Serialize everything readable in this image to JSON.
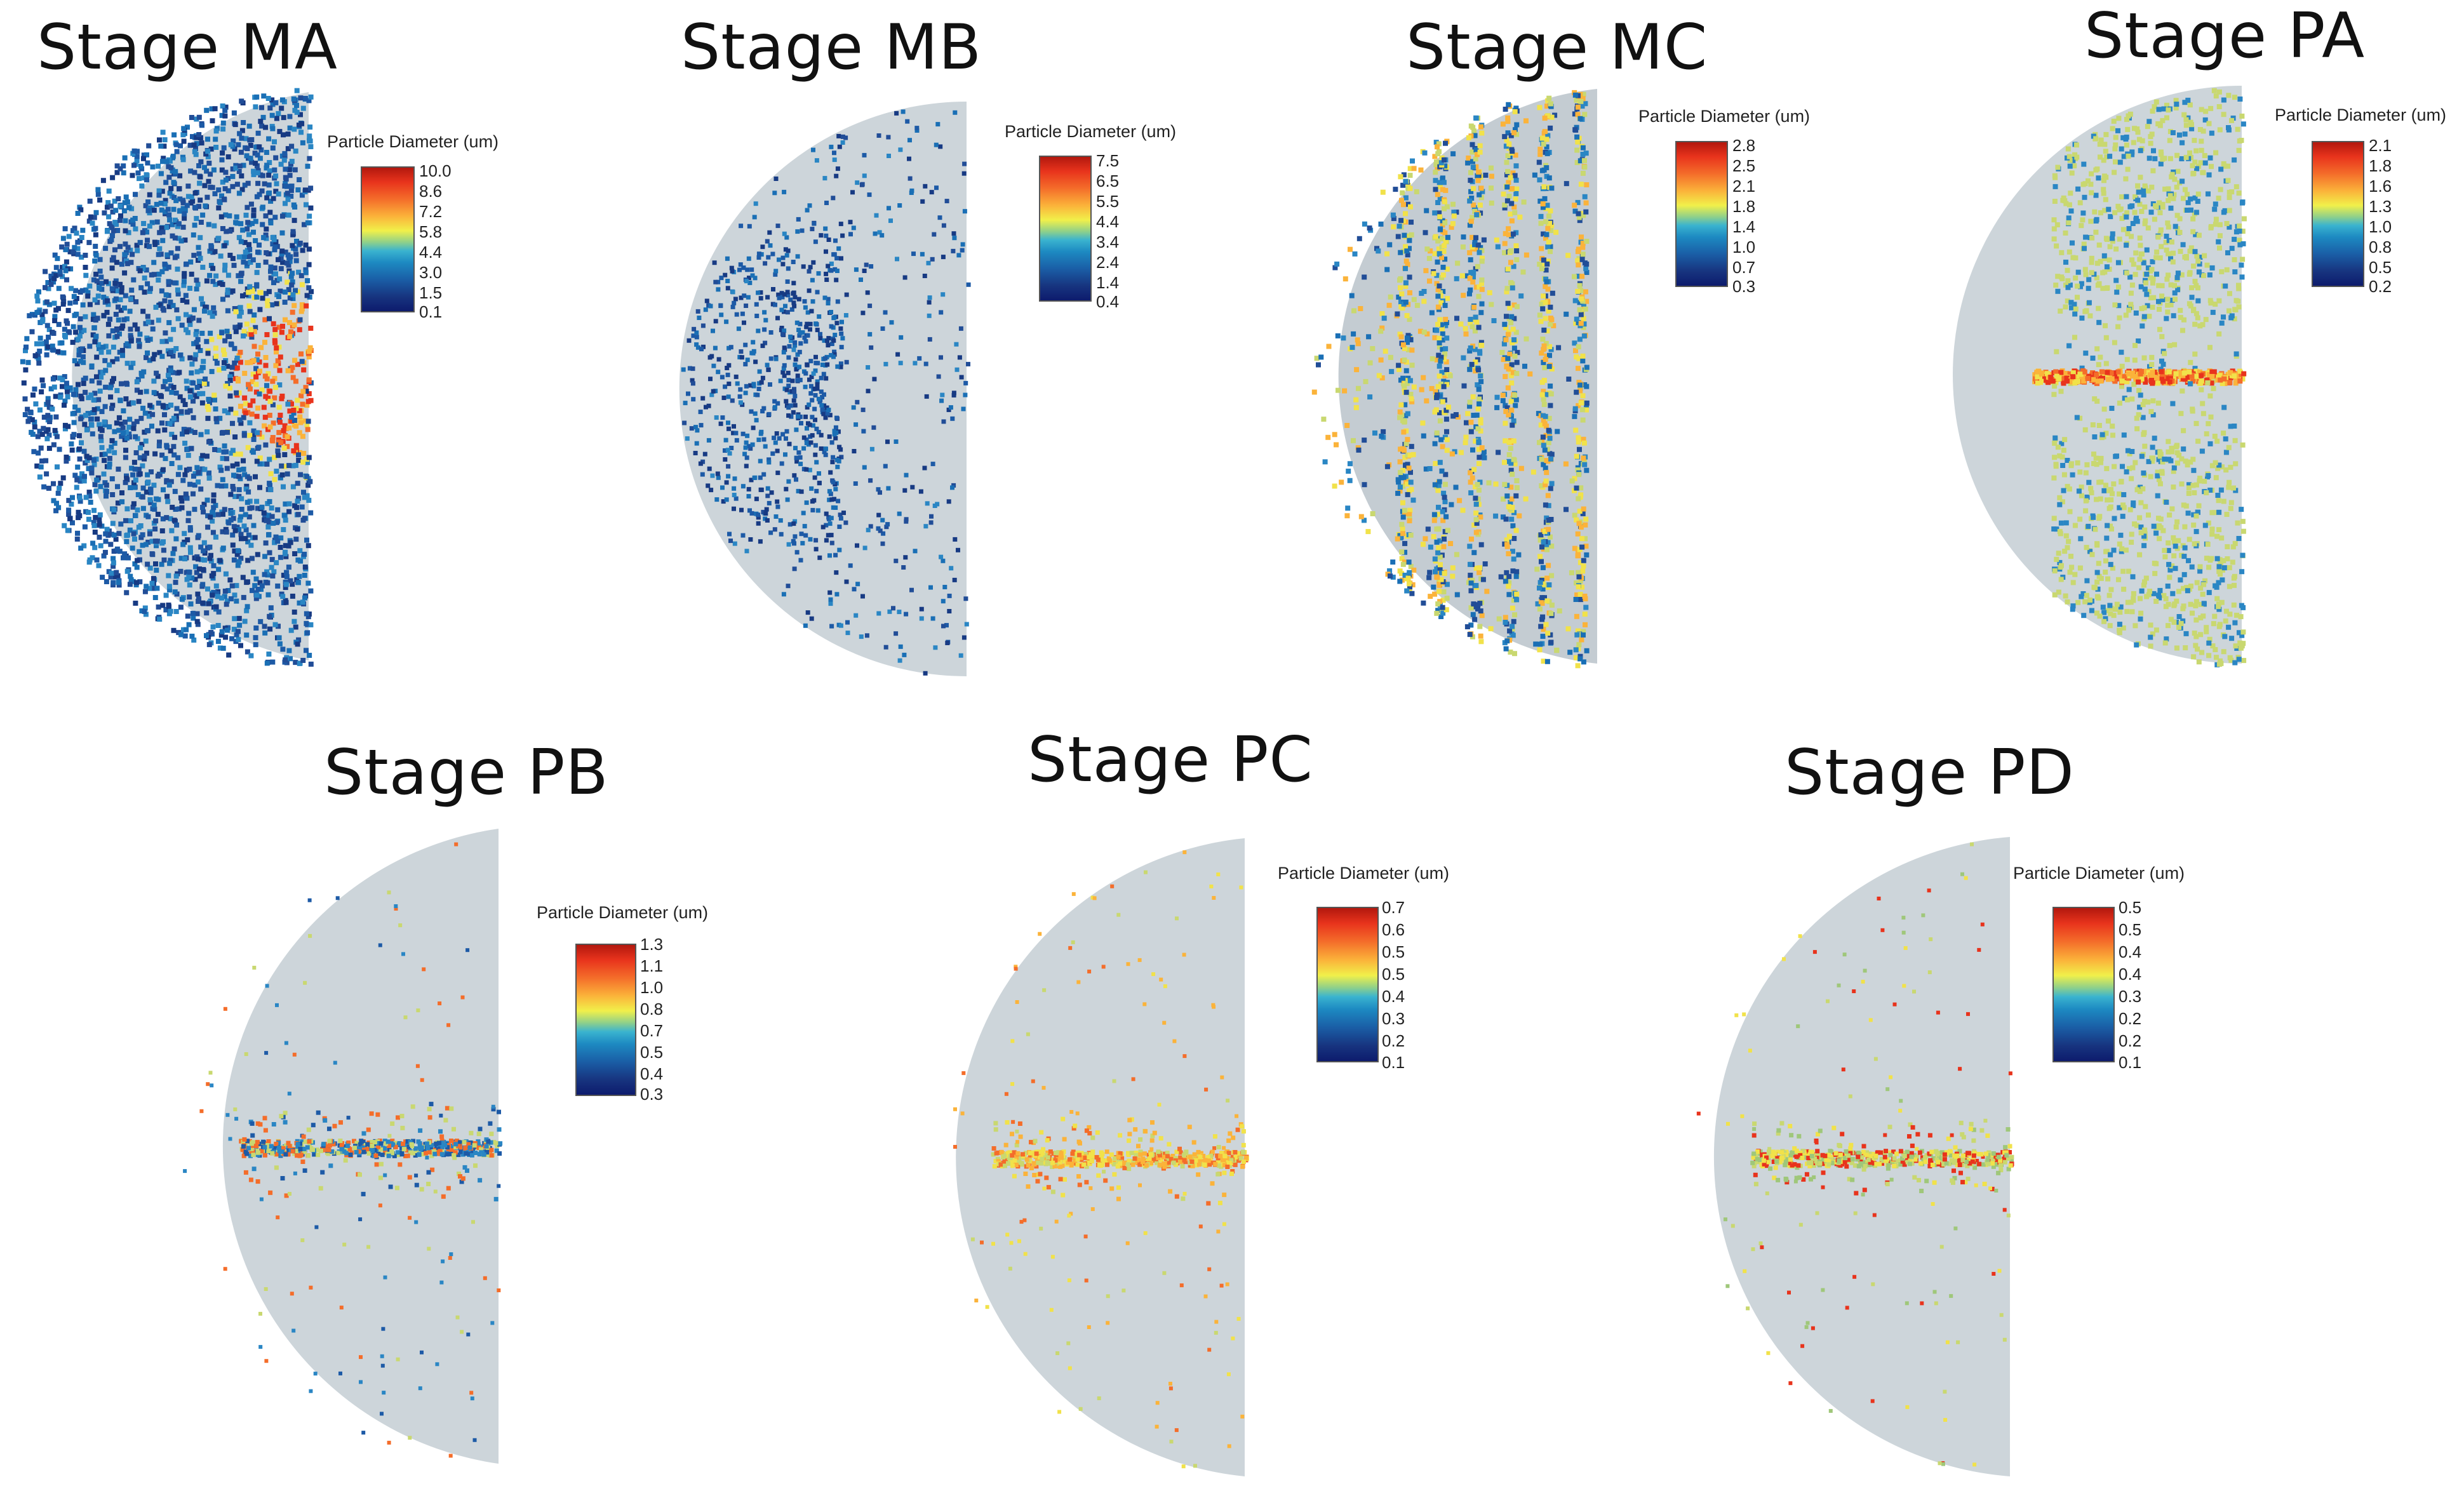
{
  "legend_title": "Particle Diameter (um)",
  "panels": [
    {
      "title": "Stage MA",
      "ticks": [
        "10.0",
        "8.6",
        "7.2",
        "5.8",
        "4.4",
        "3.0",
        "1.5",
        "0.1"
      ]
    },
    {
      "title": "Stage MB",
      "ticks": [
        "7.5",
        "6.5",
        "5.5",
        "4.4",
        "3.4",
        "2.4",
        "1.4",
        "0.4"
      ]
    },
    {
      "title": "Stage MC",
      "ticks": [
        "2.8",
        "2.5",
        "2.1",
        "1.8",
        "1.4",
        "1.0",
        "0.7",
        "0.3"
      ]
    },
    {
      "title": "Stage PA",
      "ticks": [
        "2.1",
        "1.8",
        "1.6",
        "1.3",
        "1.0",
        "0.8",
        "0.5",
        "0.2"
      ]
    },
    {
      "title": "Stage PB",
      "ticks": [
        "1.3",
        "1.1",
        "1.0",
        "0.8",
        "0.7",
        "0.5",
        "0.4",
        "0.3"
      ]
    },
    {
      "title": "Stage PC",
      "ticks": [
        "0.7",
        "0.6",
        "0.5",
        "0.5",
        "0.4",
        "0.3",
        "0.2",
        "0.1"
      ]
    },
    {
      "title": "Stage PD",
      "ticks": [
        "0.5",
        "0.5",
        "0.4",
        "0.4",
        "0.3",
        "0.2",
        "0.2",
        "0.1"
      ]
    }
  ],
  "colors": {
    "domain": "#cdd5da",
    "low": "#173a83",
    "mid": "#f0e24a",
    "high": "#e8331c"
  }
}
